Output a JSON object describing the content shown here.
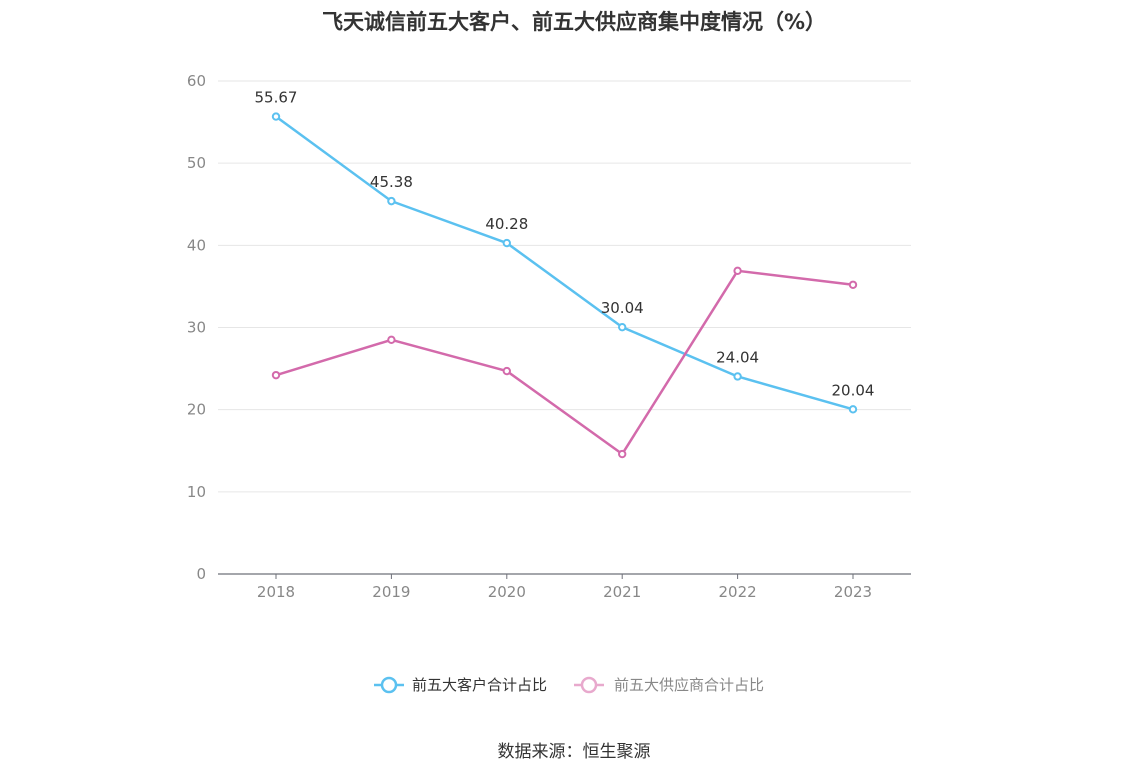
{
  "title": "飞天诚信前五大客户、前五大供应商集中度情况（%）",
  "source": "数据来源：恒生聚源",
  "chart_data": {
    "type": "line",
    "title": "飞天诚信前五大客户、前五大供应商集中度情况（%）",
    "categories": [
      "2018",
      "2019",
      "2020",
      "2021",
      "2022",
      "2023"
    ],
    "ylim": [
      0,
      60
    ],
    "yticks": [
      0,
      10,
      20,
      30,
      40,
      50,
      60
    ],
    "grid": true,
    "legend_position": "bottom",
    "series": [
      {
        "name": "前五大客户合计占比",
        "color": "#5bc1f0",
        "values": [
          55.67,
          45.38,
          40.28,
          30.04,
          24.04,
          20.04
        ],
        "labels": [
          "55.67",
          "45.38",
          "40.28",
          "30.04",
          "24.04",
          "20.04"
        ]
      },
      {
        "name": "前五大供应商合计占比",
        "color": "#d36aab",
        "legend_color": "#e8a9cd",
        "values": [
          24.2,
          28.5,
          24.7,
          14.6,
          36.9,
          35.2
        ],
        "labels": []
      }
    ]
  }
}
